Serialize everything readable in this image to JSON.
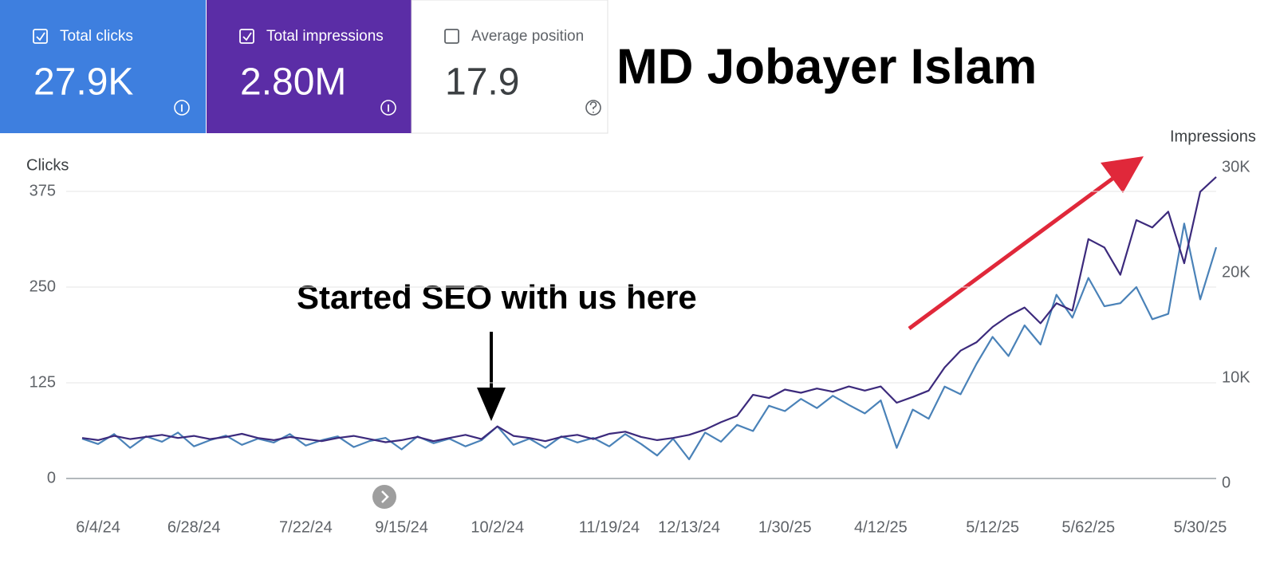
{
  "cards": [
    {
      "label": "Total clicks",
      "value": "27.9K",
      "checked": true
    },
    {
      "label": "Total impressions",
      "value": "2.80M",
      "checked": true
    },
    {
      "label": "Average position",
      "value": "17.9",
      "checked": false
    }
  ],
  "heading": "MD Jobayer Islam",
  "chart_data": {
    "type": "line",
    "annotation": "Started SEO with us here",
    "categories": [
      null,
      "6/4/24",
      null,
      null,
      null,
      null,
      null,
      "6/28/24",
      null,
      null,
      null,
      null,
      null,
      null,
      "7/22/24",
      null,
      null,
      null,
      null,
      null,
      "9/15/24",
      null,
      null,
      null,
      null,
      null,
      "10/2/24",
      null,
      null,
      null,
      null,
      null,
      null,
      "11/19/24",
      null,
      null,
      null,
      null,
      "12/13/24",
      null,
      null,
      null,
      null,
      null,
      "1/30/25",
      null,
      null,
      null,
      null,
      null,
      "4/12/25",
      null,
      null,
      null,
      null,
      null,
      null,
      "5/12/25",
      null,
      null,
      null,
      null,
      null,
      "5/62/25",
      null,
      null,
      null,
      null,
      null,
      null,
      "5/30/25",
      null
    ],
    "series": [
      {
        "name": "Clicks",
        "color": "#4a82b8",
        "values": [
          52,
          45,
          58,
          40,
          55,
          48,
          60,
          42,
          50,
          56,
          44,
          52,
          47,
          58,
          43,
          50,
          55,
          41,
          49,
          53,
          38,
          55,
          46,
          52,
          42,
          50,
          68,
          44,
          52,
          40,
          55,
          47,
          53,
          42,
          58,
          45,
          30,
          52,
          25,
          60,
          48,
          70,
          62,
          95,
          88,
          104,
          92,
          108,
          96,
          85,
          102,
          40,
          90,
          78,
          120,
          110,
          150,
          185,
          160,
          200,
          175,
          240,
          210,
          262,
          225,
          229,
          250,
          208,
          215,
          333,
          234,
          302
        ]
      },
      {
        "name": "Impressions",
        "color": "#3c2a7c",
        "axis": "y2",
        "values": [
          4300,
          4100,
          4500,
          4200,
          4400,
          4600,
          4300,
          4500,
          4200,
          4400,
          4700,
          4300,
          4100,
          4400,
          4200,
          4000,
          4300,
          4500,
          4200,
          3900,
          4100,
          4400,
          4000,
          4300,
          4600,
          4200,
          5400,
          4500,
          4300,
          4000,
          4400,
          4600,
          4200,
          4700,
          4900,
          4400,
          4100,
          4300,
          4600,
          5100,
          5800,
          6400,
          8400,
          8100,
          8900,
          8600,
          9000,
          8700,
          9200,
          8800,
          9200,
          7650,
          8200,
          8800,
          11000,
          12600,
          13400,
          14850,
          15900,
          16700,
          15200,
          17100,
          16400,
          23200,
          22400,
          19800,
          25000,
          24300,
          25800,
          20900,
          27700,
          29100
        ]
      }
    ],
    "ylim": [
      0,
      375
    ],
    "yticks": [
      0,
      125,
      250,
      375
    ],
    "y2lim": [
      0,
      30000
    ],
    "y2ticks": [
      0,
      {
        "value": 10000,
        "label": "10K"
      },
      {
        "value": 20000,
        "label": "20K"
      },
      {
        "value": 30000,
        "label": "30K"
      }
    ],
    "grid": true
  }
}
